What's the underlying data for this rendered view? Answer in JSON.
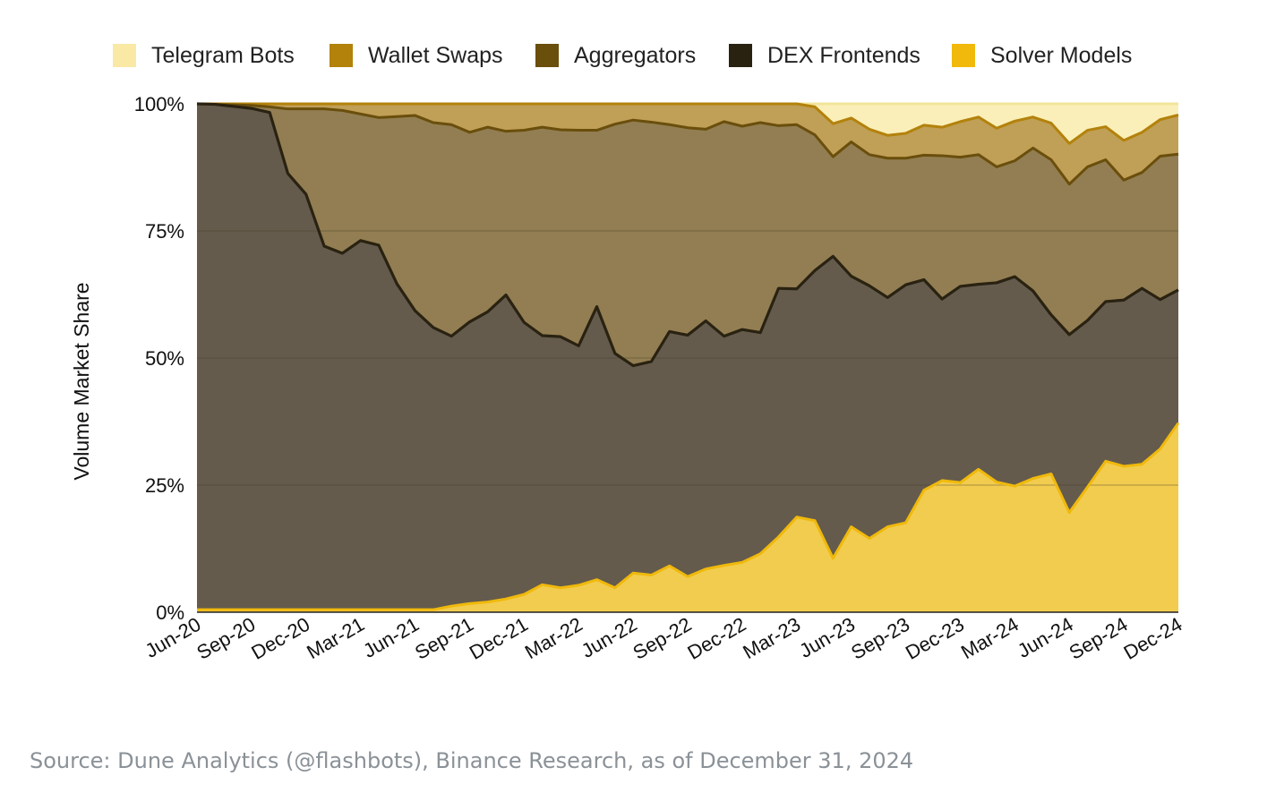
{
  "chart_data": {
    "type": "area",
    "stacked": true,
    "percent": true,
    "ylabel": "Volume Market Share",
    "xlabel": "",
    "ylim": [
      0,
      100
    ],
    "y_ticks": [
      "0%",
      "25%",
      "50%",
      "75%",
      "100%"
    ],
    "x_tick_labels": [
      "Jun-20",
      "Sep-20",
      "Dec-20",
      "Mar-21",
      "Jun-21",
      "Sep-21",
      "Dec-21",
      "Mar-22",
      "Jun-22",
      "Sep-22",
      "Dec-22",
      "Mar-23",
      "Jun-23",
      "Sep-23",
      "Dec-23",
      "Mar-24",
      "Jun-24",
      "Sep-24",
      "Dec-24"
    ],
    "legend_position": "top",
    "legend": [
      {
        "name": "Telegram Bots",
        "color": "#f9e9a4"
      },
      {
        "name": "Wallet Swaps",
        "color": "#b3820b"
      },
      {
        "name": "Aggregators",
        "color": "#6a4e0c"
      },
      {
        "name": "DEX Frontends",
        "color": "#2a2211"
      },
      {
        "name": "Solver Models",
        "color": "#f0b90b"
      }
    ],
    "series_cumulative": [
      {
        "name": "Solver Models",
        "fill": "#f1cc4f",
        "line": "#f0b90b",
        "values": [
          0.5,
          0.5,
          0.5,
          0.5,
          0.5,
          0.5,
          0.5,
          0.5,
          0.5,
          0.5,
          0.5,
          0.5,
          0.5,
          0.5,
          1.2,
          1.7,
          2,
          2.6,
          3.5,
          5.4,
          4.8,
          5.3,
          6.4,
          4.8,
          7.7,
          7.3,
          9.1,
          7,
          8.5,
          9.2,
          9.8,
          11.5,
          14.8,
          18.7,
          18,
          10.6,
          16.8,
          14.5,
          16.8,
          17.6,
          24,
          25.9,
          25.5,
          28.1,
          25.6,
          24.8,
          26.3,
          27.2,
          19.6,
          24.6,
          29.7,
          28.7,
          29.1,
          32.1,
          37.2
        ]
      },
      {
        "name": "DEX Frontends",
        "fill": "#645b4d",
        "line": "#2a2211",
        "values": [
          100,
          99.9,
          99.5,
          99.1,
          98.3,
          86.3,
          82.2,
          72,
          70.6,
          73.1,
          72.2,
          64.6,
          59.3,
          56,
          54.3,
          57.1,
          59.1,
          62.4,
          57,
          54.4,
          54.2,
          52.4,
          60.1,
          50.9,
          48.5,
          49.3,
          55.2,
          54.5,
          57.3,
          54.3,
          55.6,
          55,
          63.7,
          63.6,
          67.2,
          70,
          66.1,
          64.2,
          61.9,
          64.4,
          65.4,
          61.6,
          64.1,
          64.5,
          64.8,
          66,
          63.2,
          58.5,
          54.6,
          57.4,
          61.1,
          61.4,
          63.7,
          61.5,
          63.4
        ]
      },
      {
        "name": "Aggregators",
        "fill": "#927e52",
        "line": "#6a4e0c",
        "values": [
          100,
          99.9,
          99.8,
          99.7,
          99.4,
          99,
          99,
          99,
          98.7,
          98,
          97.3,
          97.5,
          97.7,
          96.3,
          95.9,
          94.4,
          95.4,
          94.6,
          94.8,
          95.4,
          94.9,
          94.8,
          94.8,
          96,
          96.8,
          96.4,
          95.9,
          95.3,
          95,
          96.5,
          95.6,
          96.3,
          95.7,
          95.9,
          93.9,
          89.6,
          92.5,
          90,
          89.3,
          89.3,
          89.9,
          89.8,
          89.5,
          90,
          87.6,
          88.8,
          91.3,
          89,
          84.2,
          87.6,
          89,
          85,
          86.5,
          89.7,
          90.1
        ]
      },
      {
        "name": "Wallet Swaps",
        "fill": "#c09f56",
        "line": "#b3820b",
        "values": [
          100,
          100,
          100,
          100,
          100,
          100,
          100,
          100,
          100,
          100,
          100,
          100,
          100,
          100,
          100,
          100,
          100,
          100,
          100,
          100,
          100,
          100,
          100,
          100,
          100,
          100,
          100,
          100,
          100,
          100,
          100,
          100,
          100,
          100,
          99.4,
          96.1,
          97.2,
          95,
          93.8,
          94.2,
          95.8,
          95.4,
          96.5,
          97.4,
          95.2,
          96.6,
          97.4,
          96.2,
          92.2,
          94.8,
          95.5,
          92.8,
          94.4,
          96.9,
          97.8
        ]
      },
      {
        "name": "Telegram Bots",
        "fill": "#faefb9",
        "line": "#f2e49a",
        "values": [
          100,
          100,
          100,
          100,
          100,
          100,
          100,
          100,
          100,
          100,
          100,
          100,
          100,
          100,
          100,
          100,
          100,
          100,
          100,
          100,
          100,
          100,
          100,
          100,
          100,
          100,
          100,
          100,
          100,
          100,
          100,
          100,
          100,
          100,
          100,
          100,
          100,
          100,
          100,
          100,
          100,
          100,
          100,
          100,
          100,
          100,
          100,
          100,
          100,
          100,
          100,
          100,
          100,
          100,
          100
        ]
      }
    ]
  },
  "source_note": "Source: Dune Analytics (@flashbots), Binance Research, as of December 31, 2024"
}
